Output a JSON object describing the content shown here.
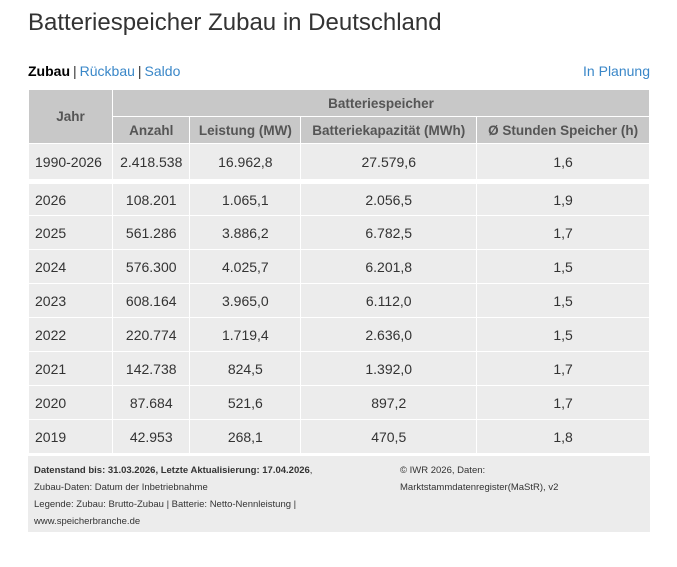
{
  "title": "Batteriespeicher Zubau in Deutschland",
  "nav": {
    "zubau": "Zubau",
    "sep1": "|",
    "rueckbau": "Rückbau",
    "sep2": "|",
    "saldo": "Saldo",
    "planung": "In Planung"
  },
  "table": {
    "group_header": "Batteriespeicher",
    "columns": [
      "Jahr",
      "Anzahl",
      "Leistung (MW)",
      "Batteriekapazität (MWh)",
      "Ø Stunden Speicher (h)"
    ],
    "total": {
      "jahr": "1990-2026",
      "anzahl": "2.418.538",
      "leistung": "16.962,8",
      "kapazitaet": "27.579,6",
      "stunden": "1,6"
    },
    "rows": [
      {
        "jahr": "2026",
        "anzahl": "108.201",
        "leistung": "1.065,1",
        "kapazitaet": "2.056,5",
        "stunden": "1,9"
      },
      {
        "jahr": "2025",
        "anzahl": "561.286",
        "leistung": "3.886,2",
        "kapazitaet": "6.782,5",
        "stunden": "1,7"
      },
      {
        "jahr": "2024",
        "anzahl": "576.300",
        "leistung": "4.025,7",
        "kapazitaet": "6.201,8",
        "stunden": "1,5"
      },
      {
        "jahr": "2023",
        "anzahl": "608.164",
        "leistung": "3.965,0",
        "kapazitaet": "6.112,0",
        "stunden": "1,5"
      },
      {
        "jahr": "2022",
        "anzahl": "220.774",
        "leistung": "1.719,4",
        "kapazitaet": "2.636,0",
        "stunden": "1,5"
      },
      {
        "jahr": "2021",
        "anzahl": "142.738",
        "leistung": "824,5",
        "kapazitaet": "1.392,0",
        "stunden": "1,7"
      },
      {
        "jahr": "2020",
        "anzahl": "87.684",
        "leistung": "521,6",
        "kapazitaet": "897,2",
        "stunden": "1,7"
      },
      {
        "jahr": "2019",
        "anzahl": "42.953",
        "leistung": "268,1",
        "kapazitaet": "470,5",
        "stunden": "1,8"
      }
    ]
  },
  "footer": {
    "stand": "Datenstand bis: 31.03.2026, Letzte Aktualisierung: 17.04.2026",
    "stand_suffix": ",",
    "zubau_daten": "Zubau-Daten: Datum der Inbetriebnahme",
    "legende": "Legende: Zubau: Brutto-Zubau | Batterie: Netto-Nennleistung |",
    "website": "www.speicherbranche.de",
    "copyright_line1": "© IWR 2026, Daten:",
    "copyright_line2": "Marktstammdatenregister(MaStR), v2"
  },
  "colors": {
    "link": "#3a87c8",
    "header_bg": "#c8c8c8",
    "row_bg": "#ececec"
  }
}
